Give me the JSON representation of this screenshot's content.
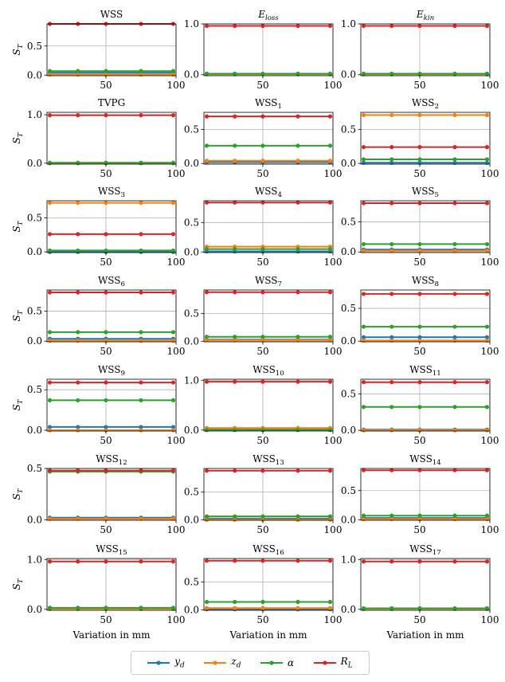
{
  "chart_data": {
    "type": "line",
    "legend": {
      "placement": "bottom-center",
      "entries": [
        {
          "key": "yd",
          "label": "y",
          "sub": "d",
          "color": "#1f77b4"
        },
        {
          "key": "zd",
          "label": "z",
          "sub": "d",
          "color": "#ff7f0e"
        },
        {
          "key": "alpha",
          "label": "α",
          "sub": "",
          "color": "#2ca02c"
        },
        {
          "key": "RL",
          "label": "R",
          "sub": "L",
          "color": "#d62728"
        }
      ]
    },
    "x": [
      10,
      30,
      50,
      75,
      98
    ],
    "xlim": [
      8,
      100
    ],
    "xticks": [
      50,
      100
    ],
    "xlabel": "Variation in mm",
    "ylabel": "S",
    "ylabel_sub": "T",
    "grid": true,
    "panels": [
      {
        "title": "WSS",
        "sub": "",
        "ylim": [
          -0.01,
          0.88
        ],
        "yticks": [
          0.0,
          0.5
        ],
        "values": {
          "yd": 0.04,
          "zd": 0.01,
          "alpha": 0.07,
          "RL": 0.88
        }
      },
      {
        "title": "E",
        "sub": "loss",
        "italic": true,
        "ylim": [
          -0.02,
          1.0
        ],
        "yticks": [
          0.0,
          1.0
        ],
        "values": {
          "yd": 0.01,
          "zd": 0.01,
          "alpha": 0.02,
          "RL": 0.96
        }
      },
      {
        "title": "E",
        "sub": "kin",
        "italic": true,
        "ylim": [
          -0.02,
          1.0
        ],
        "yticks": [
          0.0,
          1.0
        ],
        "values": {
          "yd": 0.01,
          "zd": 0.01,
          "alpha": 0.02,
          "RL": 0.96
        }
      },
      {
        "title": "TVPG",
        "sub": "",
        "ylim": [
          -0.02,
          1.05
        ],
        "yticks": [
          0.0,
          1.0
        ],
        "values": {
          "yd": 0.0,
          "zd": 0.0,
          "alpha": 0.01,
          "RL": 0.99
        }
      },
      {
        "title": "WSS",
        "sub": "1",
        "ylim": [
          -0.01,
          0.75
        ],
        "yticks": [
          0.0,
          0.5
        ],
        "values": {
          "yd": 0.02,
          "zd": 0.04,
          "alpha": 0.26,
          "RL": 0.69
        }
      },
      {
        "title": "WSS",
        "sub": "2",
        "ylim": [
          -0.01,
          0.75
        ],
        "yticks": [
          0.0,
          0.5
        ],
        "values": {
          "yd": 0.01,
          "zd": 0.71,
          "alpha": 0.06,
          "RL": 0.24
        }
      },
      {
        "title": "WSS",
        "sub": "3",
        "ylim": [
          -0.01,
          0.75
        ],
        "yticks": [
          0.0,
          0.5
        ],
        "values": {
          "yd": 0.0,
          "zd": 0.72,
          "alpha": 0.02,
          "RL": 0.26
        }
      },
      {
        "title": "WSS",
        "sub": "4",
        "ylim": [
          -0.01,
          0.87
        ],
        "yticks": [
          0.0,
          0.5
        ],
        "values": {
          "yd": 0.01,
          "zd": 0.09,
          "alpha": 0.05,
          "RL": 0.84
        }
      },
      {
        "title": "WSS",
        "sub": "5",
        "ylim": [
          -0.01,
          0.85
        ],
        "yticks": [
          0.0,
          0.5
        ],
        "values": {
          "yd": 0.04,
          "zd": 0.02,
          "alpha": 0.13,
          "RL": 0.81
        }
      },
      {
        "title": "WSS",
        "sub": "6",
        "ylim": [
          -0.01,
          0.85
        ],
        "yticks": [
          0.0,
          0.5
        ],
        "values": {
          "yd": 0.04,
          "zd": 0.01,
          "alpha": 0.15,
          "RL": 0.81
        }
      },
      {
        "title": "WSS",
        "sub": "7",
        "ylim": [
          -0.01,
          0.92
        ],
        "yticks": [
          0.0,
          0.5
        ],
        "values": {
          "yd": 0.03,
          "zd": 0.02,
          "alpha": 0.08,
          "RL": 0.88
        }
      },
      {
        "title": "WSS",
        "sub": "8",
        "ylim": [
          -0.01,
          0.78
        ],
        "yticks": [
          0.0,
          0.5
        ],
        "values": {
          "yd": 0.06,
          "zd": 0.01,
          "alpha": 0.22,
          "RL": 0.72
        }
      },
      {
        "title": "WSS",
        "sub": "9",
        "ylim": [
          -0.01,
          0.63
        ],
        "yticks": [
          0.0,
          0.5
        ],
        "values": {
          "yd": 0.04,
          "zd": 0.0,
          "alpha": 0.37,
          "RL": 0.59
        }
      },
      {
        "title": "WSS",
        "sub": "10",
        "ylim": [
          -0.02,
          1.02
        ],
        "yticks": [
          0.0,
          1.0
        ],
        "values": {
          "yd": 0.01,
          "zd": 0.04,
          "alpha": 0.0,
          "RL": 0.97
        }
      },
      {
        "title": "WSS",
        "sub": "11",
        "ylim": [
          -0.01,
          0.7
        ],
        "yticks": [
          0.0,
          0.5
        ],
        "values": {
          "yd": 0.01,
          "zd": 0.0,
          "alpha": 0.32,
          "RL": 0.66
        }
      },
      {
        "title": "WSS",
        "sub": "12",
        "ylim": [
          -0.005,
          0.5
        ],
        "yticks": [
          0.0,
          0.5
        ],
        "values": {
          "yd": 0.02,
          "zd": 0.01,
          "alpha": 0.47,
          "RL": 0.48
        }
      },
      {
        "title": "WSS",
        "sub": "13",
        "ylim": [
          -0.01,
          0.92
        ],
        "yticks": [
          0.0,
          0.5
        ],
        "values": {
          "yd": 0.02,
          "zd": 0.0,
          "alpha": 0.06,
          "RL": 0.88
        }
      },
      {
        "title": "WSS",
        "sub": "14",
        "ylim": [
          -0.01,
          0.88
        ],
        "yticks": [
          0.0,
          0.5
        ],
        "values": {
          "yd": 0.03,
          "zd": 0.01,
          "alpha": 0.07,
          "RL": 0.85
        }
      },
      {
        "title": "WSS",
        "sub": "15",
        "ylim": [
          -0.02,
          1.02
        ],
        "yticks": [
          0.0,
          1.0
        ],
        "values": {
          "yd": 0.01,
          "zd": 0.01,
          "alpha": 0.03,
          "RL": 0.96
        }
      },
      {
        "title": "WSS",
        "sub": "16",
        "ylim": [
          -0.01,
          0.92
        ],
        "yticks": [
          0.0,
          0.5
        ],
        "values": {
          "yd": 0.01,
          "zd": 0.03,
          "alpha": 0.14,
          "RL": 0.88
        }
      },
      {
        "title": "WSS",
        "sub": "17",
        "ylim": [
          -0.02,
          1.02
        ],
        "yticks": [
          0.0,
          1.0
        ],
        "values": {
          "yd": 0.01,
          "zd": 0.01,
          "alpha": 0.02,
          "RL": 0.96
        }
      }
    ]
  }
}
